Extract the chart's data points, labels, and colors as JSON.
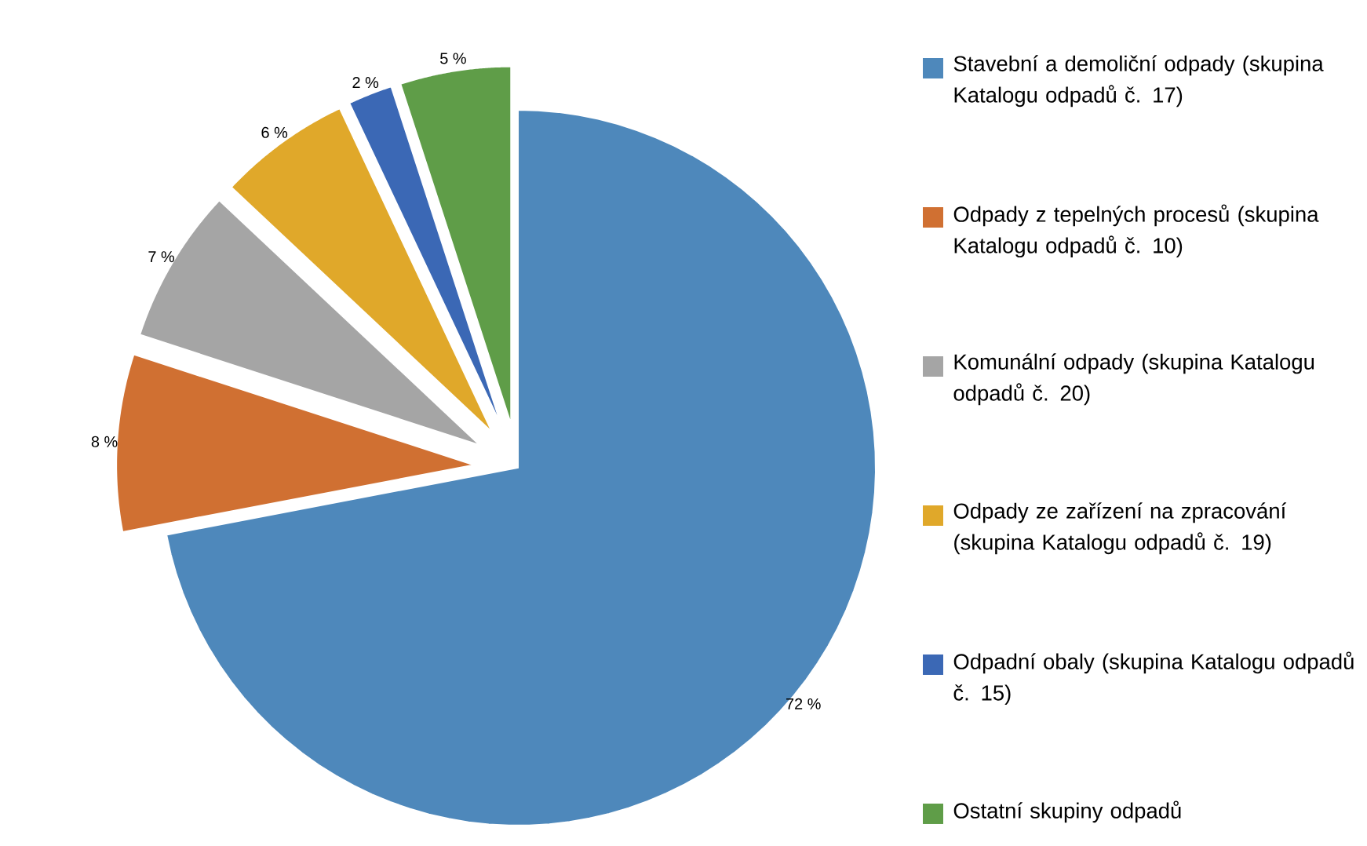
{
  "chart_data": {
    "type": "pie",
    "categories": [
      "Stavební a demoliční odpady (skupina Katalogu odpadů č. 17)",
      "Odpady z tepelných procesů (skupina Katalogu odpadů č. 10)",
      "Komunální odpady (skupina Katalogu odpadů č. 20)",
      "Odpady ze zařízení na zpracování (skupina Katalogu odpadů č. 19)",
      "Odpadní obaly (skupina Katalogu odpadů č. 15)",
      "Ostatní skupiny odpadů"
    ],
    "values": [
      72,
      8,
      7,
      6,
      2,
      5
    ],
    "colors": [
      "#4e88bb",
      "#d07032",
      "#a5a5a5",
      "#e0a82a",
      "#3b68b5",
      "#5f9d48"
    ],
    "value_labels": [
      "72 %",
      "8 %",
      "7 %",
      "6 %",
      "2 %",
      "5 %"
    ],
    "legend": "right"
  }
}
